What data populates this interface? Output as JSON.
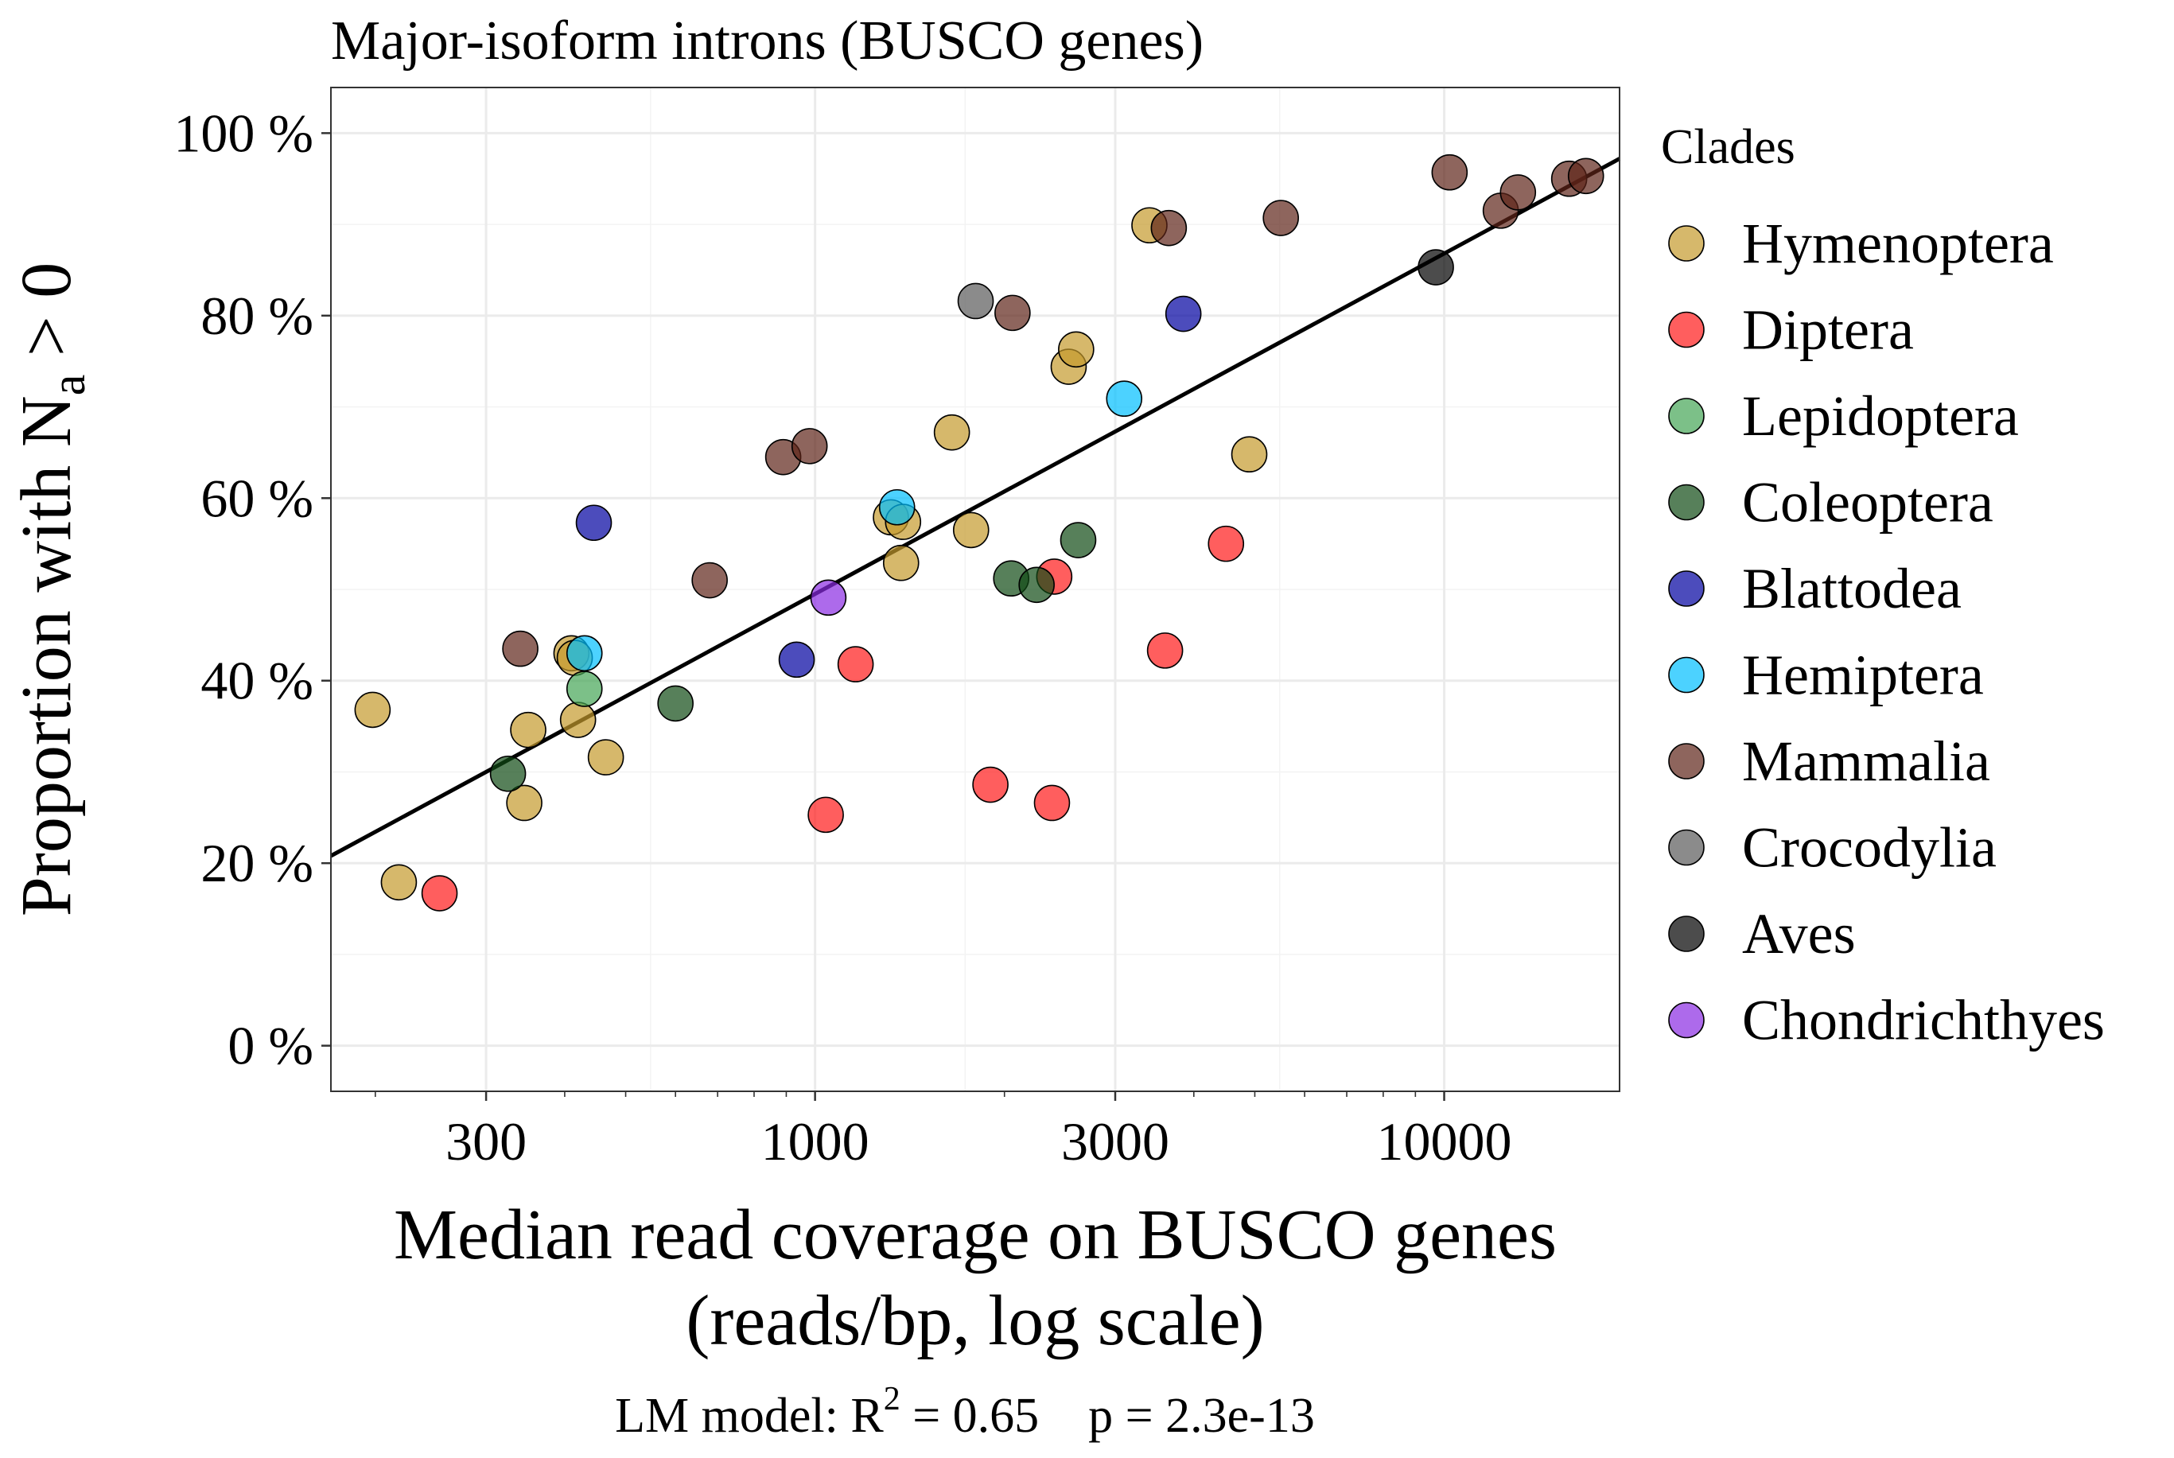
{
  "chart_data": {
    "type": "scatter",
    "title": "Major-isoform introns (BUSCO genes)",
    "xlabel_lines": [
      "Median read coverage on BUSCO genes",
      "(reads/bp, log scale)"
    ],
    "ylabel": {
      "text": "Proportion with N",
      "subscript": "a",
      "suffix": " > 0"
    },
    "x_scale": "log10",
    "xlim": [
      170,
      19000
    ],
    "ylim": [
      -5,
      105
    ],
    "x_ticks": [
      300,
      1000,
      3000,
      10000
    ],
    "x_tick_labels": [
      "300",
      "1000",
      "3000",
      "10000"
    ],
    "y_ticks": [
      0,
      20,
      40,
      60,
      80,
      100
    ],
    "y_tick_labels": [
      "0 %",
      "20 %",
      "40 %",
      "60 %",
      "80 %",
      "100 %"
    ],
    "grid": true,
    "legend": {
      "title": "Clades",
      "placement": "right"
    },
    "footnote": {
      "prefix": "LM model: R",
      "superscript": "2",
      "rest": " = 0.65    p = 2.3e-13"
    },
    "regression_line": {
      "x": [
        170,
        19000
      ],
      "y": [
        20.8,
        97.2
      ],
      "color": "#000000"
    },
    "series": [
      {
        "name": "Hymenoptera",
        "color": "#C49A2C",
        "points": [
          [
            198,
            36.8
          ],
          [
            218,
            17.9
          ],
          [
            350,
            34.6
          ],
          [
            345,
            26.6
          ],
          [
            410,
            43
          ],
          [
            415,
            42.5
          ],
          [
            420,
            35.7
          ],
          [
            465,
            31.6
          ],
          [
            1320,
            57.9
          ],
          [
            1380,
            57.4
          ],
          [
            1370,
            52.9
          ],
          [
            1650,
            67.2
          ],
          [
            1770,
            56.5
          ],
          [
            2530,
            74.4
          ],
          [
            2600,
            76.3
          ],
          [
            3400,
            89.9
          ],
          [
            4900,
            64.8
          ]
        ]
      },
      {
        "name": "Diptera",
        "color": "#FF1A1A",
        "points": [
          [
            253,
            16.7
          ],
          [
            1040,
            25.3
          ],
          [
            1160,
            41.8
          ],
          [
            1900,
            28.6
          ],
          [
            2400,
            51.4
          ],
          [
            2380,
            26.6
          ],
          [
            3600,
            43.3
          ],
          [
            4500,
            55
          ]
        ]
      },
      {
        "name": "Lepidoptera",
        "color": "#45A556",
        "points": [
          [
            430,
            39.1
          ]
        ]
      },
      {
        "name": "Coleoptera",
        "color": "#0F4A14",
        "points": [
          [
            325,
            29.8
          ],
          [
            600,
            37.5
          ],
          [
            2050,
            51.2
          ],
          [
            2250,
            50.5
          ],
          [
            2620,
            55.4
          ]
        ]
      },
      {
        "name": "Blattodea",
        "color": "#0000A0",
        "points": [
          [
            445,
            57.3
          ],
          [
            935,
            42.3
          ],
          [
            3850,
            80.2
          ]
        ]
      },
      {
        "name": "Hemiptera",
        "color": "#00BFFF",
        "points": [
          [
            430,
            43
          ],
          [
            1350,
            59
          ],
          [
            3100,
            70.9
          ]
        ]
      },
      {
        "name": "Mammalia",
        "color": "#5E2418",
        "points": [
          [
            340,
            43.5
          ],
          [
            680,
            51
          ],
          [
            890,
            64.5
          ],
          [
            980,
            65.7
          ],
          [
            2060,
            80.3
          ],
          [
            3650,
            89.6
          ],
          [
            5500,
            90.7
          ],
          [
            10200,
            95.7
          ],
          [
            12300,
            91.5
          ],
          [
            13100,
            93.5
          ],
          [
            15800,
            95
          ],
          [
            16800,
            95.3
          ]
        ]
      },
      {
        "name": "Crocodylia",
        "color": "#5A5A5A",
        "points": [
          [
            1800,
            81.6
          ]
        ]
      },
      {
        "name": "Aves",
        "color": "#000000",
        "points": [
          [
            9700,
            85.3
          ]
        ]
      },
      {
        "name": "Chondrichthyes",
        "color": "#8A2BE2",
        "points": [
          [
            1050,
            49.1
          ]
        ]
      }
    ]
  }
}
